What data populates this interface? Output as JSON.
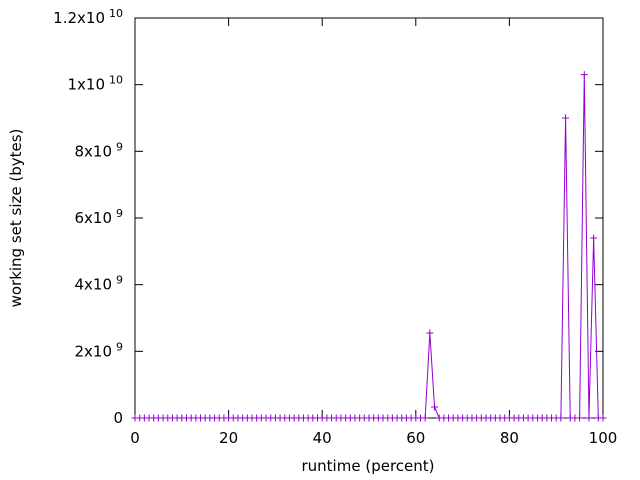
{
  "chart_data": {
    "type": "line",
    "xlabel": "runtime (percent)",
    "ylabel": "working set size (bytes)",
    "color": "#9400d3",
    "marker": "+",
    "xlim": [
      0,
      100
    ],
    "xticks": [
      0,
      20,
      40,
      60,
      80,
      100
    ],
    "ylim": [
      0,
      12000000000
    ],
    "yticks": [
      0,
      {
        "value": 2000000000,
        "label": "2x10",
        "exponent": "9"
      },
      {
        "value": 4000000000,
        "label": "4x10",
        "exponent": "9"
      },
      {
        "value": 6000000000,
        "label": "6x10",
        "exponent": "9"
      },
      {
        "value": 8000000000,
        "label": "8x10",
        "exponent": "9"
      },
      {
        "value": 10000000000,
        "label": "1x10",
        "exponent": "10"
      },
      {
        "value": 12000000000,
        "label": "1.2x10",
        "exponent": "10"
      }
    ],
    "x": [
      0,
      1,
      2,
      3,
      4,
      5,
      6,
      7,
      8,
      9,
      10,
      11,
      12,
      13,
      14,
      15,
      16,
      17,
      18,
      19,
      20,
      21,
      22,
      23,
      24,
      25,
      26,
      27,
      28,
      29,
      30,
      31,
      32,
      33,
      34,
      35,
      36,
      37,
      38,
      39,
      40,
      41,
      42,
      43,
      44,
      45,
      46,
      47,
      48,
      49,
      50,
      51,
      52,
      53,
      54,
      55,
      56,
      57,
      58,
      59,
      60,
      61,
      62,
      63,
      64,
      65,
      66,
      67,
      68,
      69,
      70,
      71,
      72,
      73,
      74,
      75,
      76,
      77,
      78,
      79,
      80,
      81,
      82,
      83,
      84,
      85,
      86,
      87,
      88,
      89,
      90,
      91,
      92,
      93,
      94,
      95,
      96,
      97,
      98,
      99,
      100
    ],
    "values": [
      0,
      0,
      0,
      0,
      0,
      0,
      0,
      0,
      0,
      0,
      0,
      0,
      0,
      0,
      0,
      0,
      0,
      0,
      0,
      0,
      0,
      0,
      0,
      0,
      0,
      0,
      0,
      0,
      0,
      0,
      0,
      0,
      0,
      0,
      0,
      0,
      0,
      0,
      0,
      0,
      0,
      0,
      0,
      0,
      0,
      0,
      0,
      0,
      0,
      0,
      0,
      0,
      0,
      0,
      0,
      0,
      0,
      0,
      0,
      0,
      0,
      0,
      0,
      2550000000,
      330000000,
      0,
      0,
      0,
      0,
      0,
      0,
      0,
      0,
      0,
      0,
      0,
      0,
      0,
      0,
      0,
      0,
      0,
      0,
      0,
      0,
      0,
      0,
      0,
      0,
      0,
      0,
      0,
      9000000000,
      0,
      0,
      0,
      10300000000,
      0,
      5400000000,
      0,
      0
    ]
  }
}
